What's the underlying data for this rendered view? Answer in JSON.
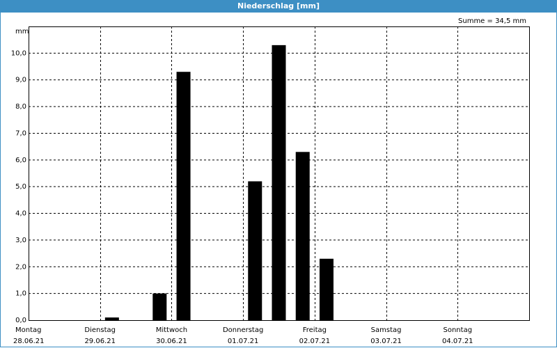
{
  "header": {
    "title": "Niederschlag [mm]"
  },
  "summary": "Summe = 34,5 mm",
  "chart_data": {
    "type": "bar",
    "ylabel": "mm",
    "ylim": [
      0,
      11
    ],
    "yticks": [
      0,
      1,
      2,
      3,
      4,
      5,
      6,
      7,
      8,
      9,
      10
    ],
    "ytick_labels": [
      "0,0",
      "1,0",
      "2,0",
      "3,0",
      "4,0",
      "5,0",
      "6,0",
      "7,0",
      "8,0",
      "9,0",
      "10,0"
    ],
    "days": [
      {
        "day": "Montag",
        "date": "28.06.21"
      },
      {
        "day": "Dienstag",
        "date": "29.06.21"
      },
      {
        "day": "Mittwoch",
        "date": "30.06.21"
      },
      {
        "day": "Donnerstag",
        "date": "01.07.21"
      },
      {
        "day": "Freitag",
        "date": "02.07.21"
      },
      {
        "day": "Samstag",
        "date": "03.07.21"
      },
      {
        "day": "Sonntag",
        "date": "04.07.21"
      }
    ],
    "bars_per_day": 3,
    "values": [
      0,
      0,
      0,
      0.1,
      0,
      1.0,
      9.3,
      0,
      0,
      5.2,
      10.3,
      6.3,
      2.3,
      0,
      0,
      0,
      0,
      0,
      0,
      0,
      0
    ],
    "grid": true,
    "bar_color": "#000000"
  }
}
